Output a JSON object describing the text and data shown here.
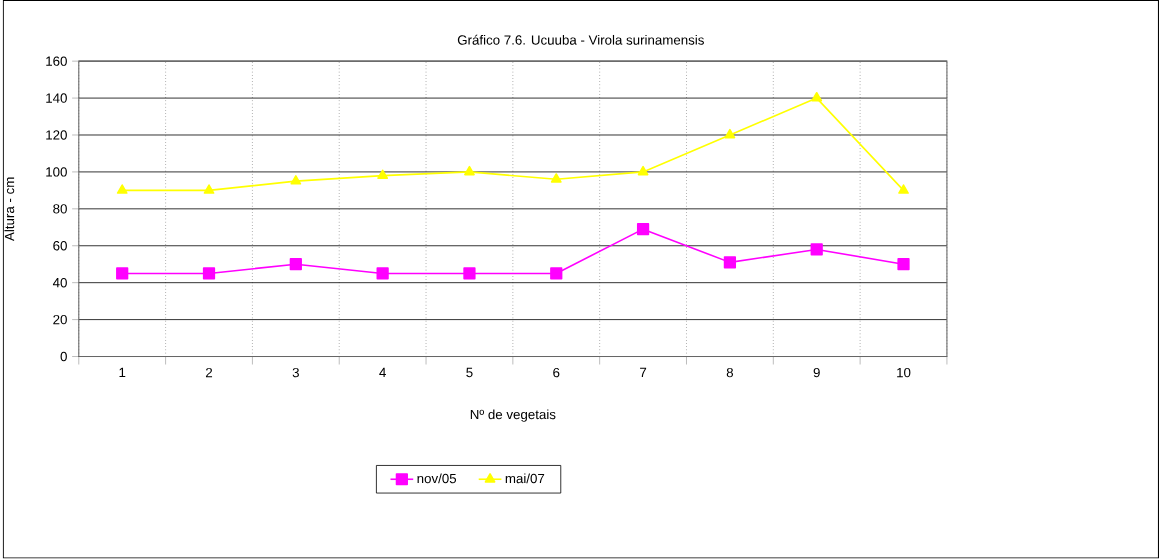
{
  "chart_data": {
    "type": "line",
    "title": "Gráfico 7.6. Ucuuba - Virola surinamensis",
    "xlabel": "Nº de vegetais",
    "ylabel": "Altura - cm",
    "categories": [
      "1",
      "2",
      "3",
      "4",
      "5",
      "6",
      "7",
      "8",
      "9",
      "10"
    ],
    "series": [
      {
        "name": "nov/05",
        "color": "#ff00ff",
        "marker": "square",
        "values": [
          45,
          45,
          50,
          45,
          45,
          45,
          69,
          51,
          58,
          50
        ]
      },
      {
        "name": "mai/07",
        "color": "#ffff00",
        "marker": "triangle",
        "values": [
          90,
          90,
          95,
          98,
          100,
          96,
          100,
          120,
          140,
          90
        ]
      }
    ],
    "ylim": [
      0,
      160
    ],
    "yticks": [
      0,
      20,
      40,
      60,
      80,
      100,
      120,
      140,
      160
    ],
    "grid": true,
    "legend": "bottom",
    "line_style": "solid"
  }
}
